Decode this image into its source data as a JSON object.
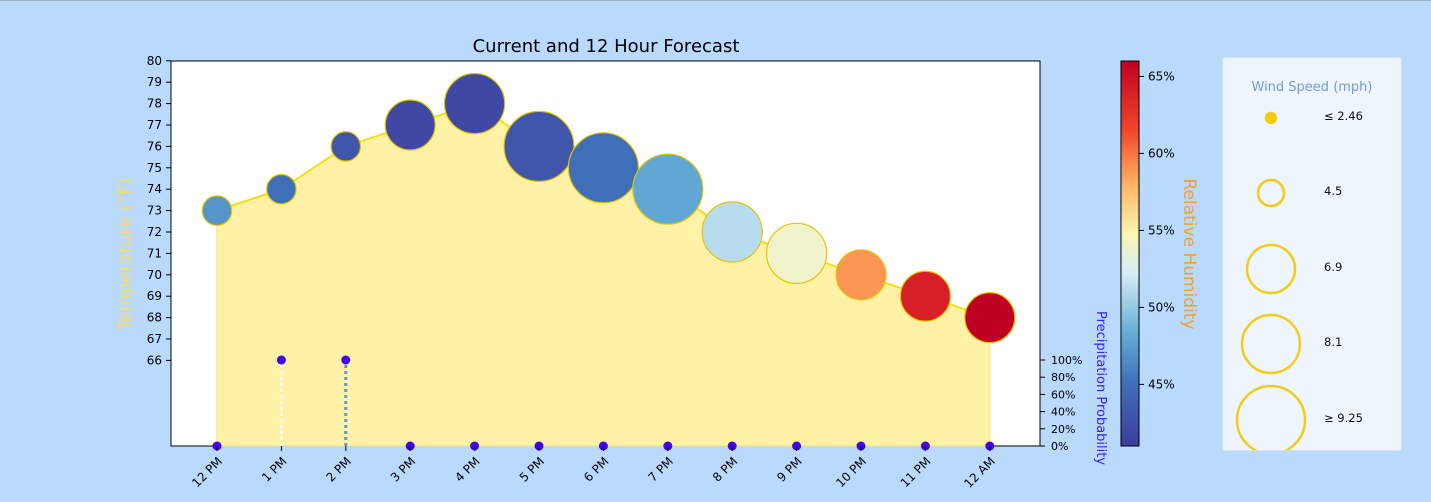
{
  "chart_data": {
    "type": "line",
    "title": "Current and 12 Hour Forecast",
    "categories": [
      "12 PM",
      "1 PM",
      "2 PM",
      "3 PM",
      "4 PM",
      "5 PM",
      "6 PM",
      "7 PM",
      "8 PM",
      "9 PM",
      "10 PM",
      "11 PM",
      "12 AM"
    ],
    "temperature": [
      73,
      74,
      76,
      77,
      78,
      76,
      75,
      74,
      72,
      71,
      70,
      69,
      68
    ],
    "relative_humidity": [
      47,
      45,
      43,
      42,
      42,
      43,
      45,
      48,
      51,
      54,
      59,
      64,
      66
    ],
    "wind_speed": [
      4.5,
      4.5,
      4.5,
      6.9,
      8.1,
      9.25,
      9.25,
      9.25,
      8.1,
      8.1,
      6.9,
      6.9,
      6.9
    ],
    "precipitation_probability": [
      0,
      100,
      100,
      0,
      0,
      0,
      0,
      0,
      0,
      0,
      0,
      0,
      0
    ],
    "ylabel": "Temperature (°F)",
    "y_ticks": [
      66,
      67,
      68,
      69,
      70,
      71,
      72,
      73,
      74,
      75,
      76,
      77,
      78,
      79,
      80
    ],
    "ylim": [
      62,
      81
    ],
    "precip_label": "Precipitation Probability",
    "precip_ticks": [
      "100%",
      "80%",
      "60%",
      "40%",
      "20%",
      "0%"
    ],
    "colorbar": {
      "label": "Relative Humidity",
      "range": [
        41,
        66
      ],
      "ticks": [
        "45%",
        "50%",
        "55%",
        "60%",
        "65%"
      ],
      "tick_values": [
        45,
        50,
        55,
        60,
        65
      ]
    },
    "wind_legend": {
      "title": "Wind Speed (mph)",
      "labels": [
        "≤ 2.46",
        "4.5",
        "6.9",
        "8.1",
        "≥ 9.25"
      ]
    },
    "colors": {
      "background": "#b9d9fd",
      "line": "#f7dd14",
      "area": "#fff2a6",
      "temperature_label": "#f7dc6f",
      "humidity_label": "#f5a024",
      "precip_label": "#3a1cff",
      "wind_title": "#6f9ed6",
      "marker_edge": "#e8c400"
    }
  }
}
